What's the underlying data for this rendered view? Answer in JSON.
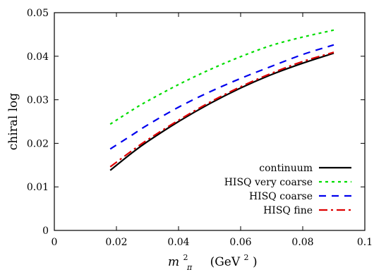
{
  "chart_data": {
    "type": "line",
    "title": "",
    "ylabel": "chiral log",
    "xlabel": {
      "symbol": "m",
      "superscript": "2",
      "subscript": "π",
      "unit_prefix": "(GeV",
      "unit_superscript": "2",
      "unit_suffix": ")"
    },
    "xlim": [
      0,
      0.1
    ],
    "ylim": [
      0,
      0.05
    ],
    "xticks": [
      0,
      0.02,
      0.04,
      0.06,
      0.08,
      0.1
    ],
    "xtick_labels": [
      "0",
      "0.02",
      "0.04",
      "0.06",
      "0.08",
      "0.1"
    ],
    "yticks": [
      0,
      0.01,
      0.02,
      0.03,
      0.04,
      0.05
    ],
    "ytick_labels": [
      "0",
      "0.01",
      "0.02",
      "0.03",
      "0.04",
      "0.05"
    ],
    "grid": false,
    "legend": "bottom-right",
    "series": [
      {
        "name": "continuum",
        "color": "#000000",
        "style": "solid",
        "x": [
          0.018,
          0.025,
          0.03,
          0.04,
          0.05,
          0.06,
          0.07,
          0.08,
          0.09
        ],
        "y": [
          0.0138,
          0.0178,
          0.0204,
          0.025,
          0.0291,
          0.0327,
          0.0358,
          0.0384,
          0.0407
        ]
      },
      {
        "name": "HISQ very coarse",
        "color": "#00dd00",
        "style": "dotted",
        "x": [
          0.018,
          0.025,
          0.03,
          0.04,
          0.05,
          0.06,
          0.07,
          0.08,
          0.09
        ],
        "y": [
          0.0244,
          0.0276,
          0.0297,
          0.0335,
          0.0369,
          0.0399,
          0.0425,
          0.0444,
          0.046
        ]
      },
      {
        "name": "HISQ coarse",
        "color": "#0000ee",
        "style": "dashed",
        "x": [
          0.018,
          0.025,
          0.03,
          0.04,
          0.05,
          0.06,
          0.07,
          0.08,
          0.09
        ],
        "y": [
          0.0187,
          0.0219,
          0.0242,
          0.0283,
          0.0318,
          0.0349,
          0.0377,
          0.0404,
          0.0426
        ]
      },
      {
        "name": "HISQ fine",
        "color": "#dd0000",
        "style": "dash-dot",
        "x": [
          0.018,
          0.025,
          0.03,
          0.04,
          0.05,
          0.06,
          0.07,
          0.08,
          0.09
        ],
        "y": [
          0.0146,
          0.0183,
          0.0208,
          0.0253,
          0.0294,
          0.033,
          0.0361,
          0.0388,
          0.0409
        ]
      }
    ]
  }
}
